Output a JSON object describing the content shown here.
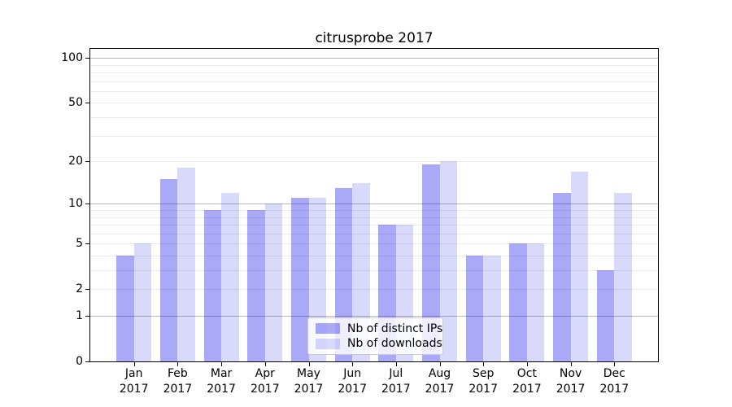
{
  "chart_data": {
    "type": "bar",
    "title": "citrusprobe 2017",
    "categories": [
      "Jan",
      "Feb",
      "Mar",
      "Apr",
      "May",
      "Jun",
      "Jul",
      "Aug",
      "Sep",
      "Oct",
      "Nov",
      "Dec"
    ],
    "year_label": "2017",
    "series": [
      {
        "name": "Nb of distinct IPs",
        "color": "rgba(10,10,235,0.35)",
        "color_hex": "#a9a9f8",
        "values": [
          4,
          15,
          9,
          9,
          11,
          13,
          7,
          19,
          4,
          5,
          12,
          3
        ]
      },
      {
        "name": "Nb of downloads",
        "color": "rgba(10,10,235,0.155)",
        "color_hex": "#dadaf9",
        "values": [
          5,
          18,
          12,
          10,
          11,
          14,
          7,
          20,
          4,
          5,
          17,
          12
        ]
      }
    ],
    "xlabel": "",
    "ylabel": "",
    "yscale": "log1p",
    "ylim": [
      0,
      115
    ],
    "yticks": [
      0,
      1,
      2,
      5,
      10,
      20,
      50,
      100
    ],
    "grid": {
      "on": true,
      "major": [
        1,
        10,
        100
      ],
      "minor": [
        2,
        3,
        4,
        5,
        6,
        7,
        8,
        9,
        20,
        30,
        40,
        50,
        60,
        70,
        80,
        90
      ],
      "major_color": "#b8b8b8",
      "minor_color": "#e9e9e9"
    },
    "legend": {
      "position": "lower-center",
      "entries": [
        "Nb of distinct IPs",
        "Nb of downloads"
      ]
    }
  }
}
